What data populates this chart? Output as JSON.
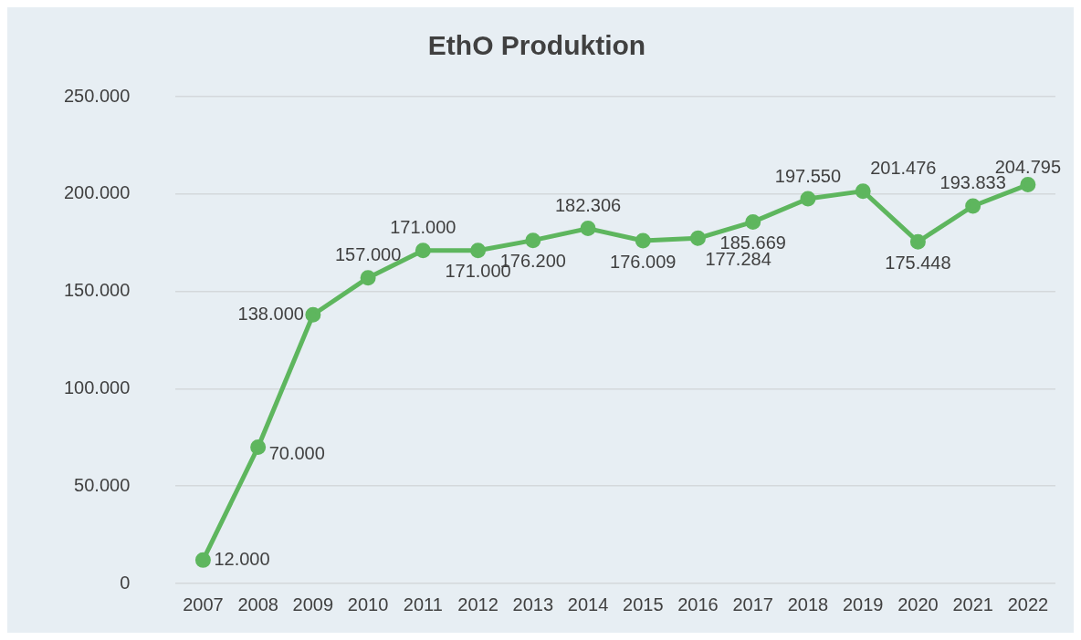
{
  "chart_data": {
    "type": "line",
    "title": "EthO Produktion",
    "categories": [
      "2007",
      "2008",
      "2009",
      "2010",
      "2011",
      "2012",
      "2013",
      "2014",
      "2015",
      "2016",
      "2017",
      "2018",
      "2019",
      "2020",
      "2021",
      "2022"
    ],
    "series": [
      {
        "color": "#5eb65e",
        "values": [
          12000,
          70000,
          138000,
          157000,
          171000,
          171000,
          176200,
          182306,
          176009,
          177284,
          185669,
          197550,
          201476,
          175448,
          193833,
          204795
        ],
        "value_labels": [
          "12.000",
          "70.000",
          "138.000",
          "157.000",
          "171.000",
          "171.000",
          "176.200",
          "182.306",
          "176.009",
          "177.284",
          "185.669",
          "197.550",
          "201.476",
          "175.448",
          "193.833",
          "204.795"
        ]
      }
    ],
    "ylim": [
      0,
      250000
    ],
    "yticks": [
      {
        "value": 0,
        "label": "0"
      },
      {
        "value": 50000,
        "label": "50.000"
      },
      {
        "value": 100000,
        "label": "100.000"
      },
      {
        "value": 150000,
        "label": "150.000"
      },
      {
        "value": 200000,
        "label": "200.000"
      },
      {
        "value": 250000,
        "label": "250.000"
      }
    ],
    "grid": "y",
    "legend": false,
    "marker": "circle",
    "line_style": "solid"
  }
}
